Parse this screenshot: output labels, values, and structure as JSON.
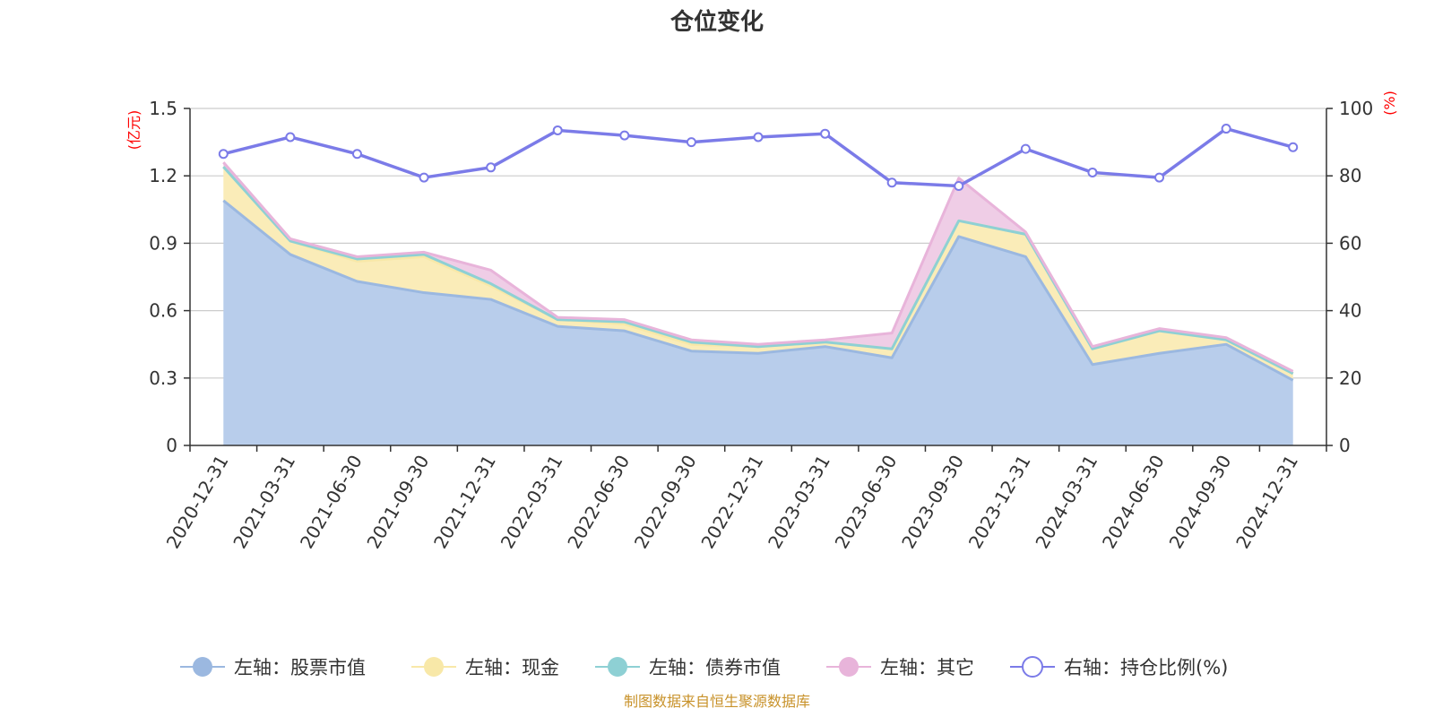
{
  "chart_data": {
    "type": "area",
    "title": "仓位变化",
    "categories": [
      "2020-12-31",
      "2021-03-31",
      "2021-06-30",
      "2021-09-30",
      "2021-12-31",
      "2022-03-31",
      "2022-06-30",
      "2022-09-30",
      "2022-12-31",
      "2023-03-31",
      "2023-06-30",
      "2023-09-30",
      "2023-12-31",
      "2024-03-31",
      "2024-06-30",
      "2024-09-30",
      "2024-12-31"
    ],
    "left_axis": {
      "unit": "(亿元)",
      "ylim": [
        0,
        1.5
      ],
      "ticks": [
        "0",
        "0.3",
        "0.6",
        "0.9",
        "1.2",
        "1.5"
      ]
    },
    "right_axis": {
      "unit": "(%)",
      "ylim": [
        0,
        100
      ],
      "ticks": [
        "0",
        "20",
        "40",
        "60",
        "80",
        "100"
      ]
    },
    "series": [
      {
        "name": "左轴：股票市值",
        "axis": "left",
        "color": "#9bb8e0",
        "fill": "#b8cdeb",
        "values": [
          1.09,
          0.85,
          0.73,
          0.68,
          0.65,
          0.53,
          0.51,
          0.42,
          0.41,
          0.44,
          0.39,
          0.93,
          0.84,
          0.36,
          0.41,
          0.45,
          0.29
        ]
      },
      {
        "name": "左轴：现金",
        "axis": "left",
        "color": "#f8e8a8",
        "fill": "#faecb8",
        "values": [
          0.15,
          0.06,
          0.09,
          0.16,
          0.06,
          0.03,
          0.03,
          0.03,
          0.03,
          0.02,
          0.04,
          0.07,
          0.1,
          0.07,
          0.1,
          0.02,
          0.03
        ]
      },
      {
        "name": "左轴：债券市值",
        "axis": "left",
        "color": "#8ed0d4",
        "fill": "#a8dcdf",
        "values": [
          0,
          0,
          0.01,
          0.01,
          0.01,
          0,
          0.01,
          0.01,
          0,
          0,
          0,
          0,
          0,
          0,
          0,
          0,
          0
        ]
      },
      {
        "name": "左轴：其它",
        "axis": "left",
        "color": "#e8b4da",
        "fill": "#efcde6",
        "values": [
          0.02,
          0.01,
          0.01,
          0.01,
          0.06,
          0.01,
          0.01,
          0.01,
          0.01,
          0.01,
          0.07,
          0.19,
          0.01,
          0.01,
          0.01,
          0.01,
          0.01
        ]
      },
      {
        "name": "右轴：持仓比例(%)",
        "axis": "right",
        "type": "line",
        "color": "#7b7be8",
        "values": [
          86.5,
          91.5,
          86.5,
          79.5,
          82.5,
          93.5,
          92,
          90,
          91.5,
          92.5,
          78,
          77,
          88,
          81,
          79.5,
          94,
          88.5
        ]
      }
    ],
    "legend_position": "bottom",
    "source": "制图数据来自恒生聚源数据库"
  }
}
